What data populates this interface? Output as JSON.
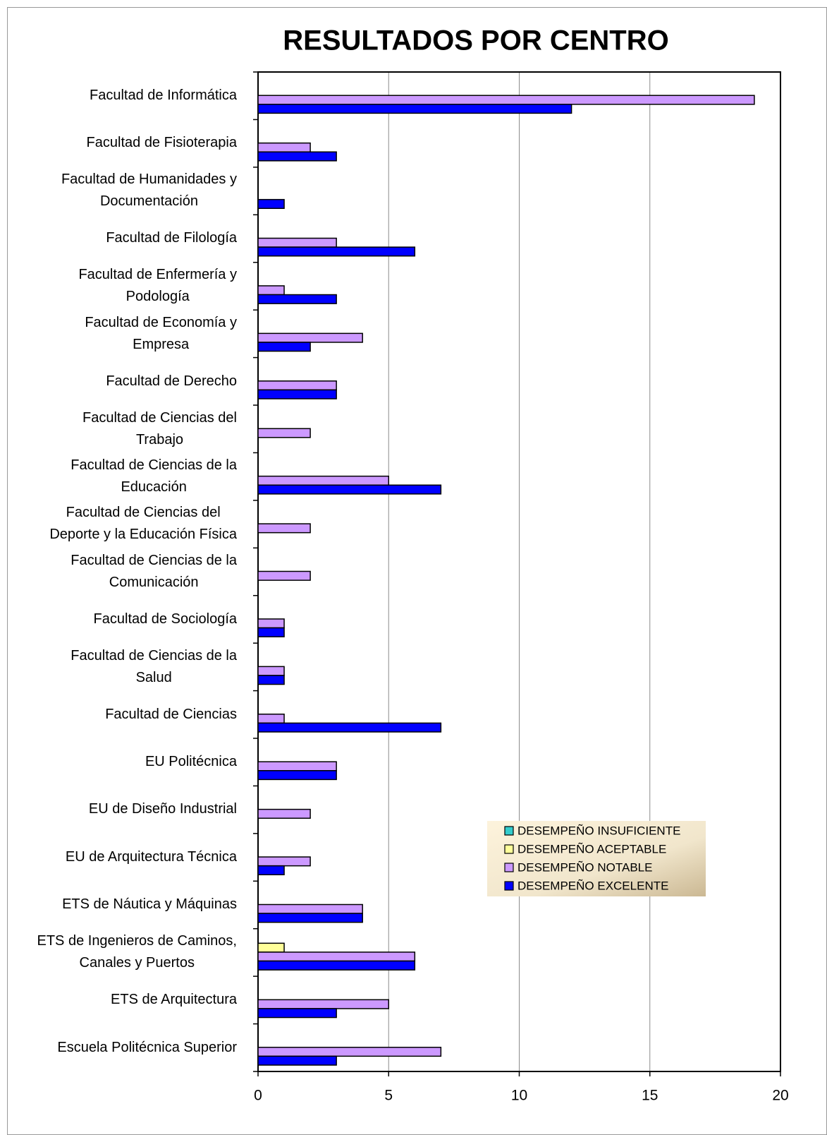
{
  "chart_data": {
    "type": "bar",
    "orientation": "horizontal",
    "title": "RESULTADOS POR CENTRO",
    "categories": [
      "Facultad de Informática",
      "Facultad de Fisioterapia",
      "Facultad de Humanidades y\nDocumentación",
      "Facultad de Filología",
      "Facultad de Enfermería y\nPodología",
      "Facultad de Economía y\nEmpresa",
      "Facultad de Derecho",
      "Facultad de Ciencias del\nTrabajo",
      "Facultad de Ciencias de la\nEducación",
      "Facultad de Ciencias del\nDeporte y la Educación Física",
      "Facultad de Ciencias de la\nComunicación",
      "Facultad de Sociología",
      "Facultad de Ciencias de la\nSalud",
      "Facultad de Ciencias",
      "EU Politécnica",
      "EU de Diseño Industrial",
      "EU de Arquitectura Técnica",
      "ETS de Náutica y Máquinas",
      "ETS de Ingenieros de Caminos,\nCanales y Puertos",
      "ETS de Arquitectura",
      "Escuela Politécnica Superior"
    ],
    "series": [
      {
        "name": "DESEMPEÑO INSUFICIENTE",
        "color": "#33cccc",
        "values": [
          0,
          0,
          0,
          0,
          0,
          0,
          0,
          0,
          0,
          0,
          0,
          0,
          0,
          0,
          0,
          0,
          0,
          0,
          0,
          0,
          0
        ]
      },
      {
        "name": "DESEMPEÑO ACEPTABLE",
        "color": "#ffff99",
        "values": [
          0,
          0,
          0,
          0,
          0,
          0,
          0,
          0,
          0,
          0,
          0,
          0,
          0,
          0,
          0,
          0,
          0,
          0,
          1,
          0,
          0
        ]
      },
      {
        "name": "DESEMPEÑO NOTABLE",
        "color": "#cc99ff",
        "values": [
          19,
          2,
          0,
          3,
          1,
          4,
          3,
          2,
          5,
          2,
          2,
          1,
          1,
          1,
          3,
          2,
          2,
          4,
          6,
          5,
          7
        ]
      },
      {
        "name": "DESEMPEÑO EXCELENTE",
        "color": "#0000ff",
        "values": [
          12,
          3,
          1,
          6,
          3,
          2,
          3,
          0,
          7,
          0,
          0,
          1,
          1,
          7,
          3,
          0,
          1,
          4,
          6,
          3,
          3
        ]
      }
    ],
    "xlim": [
      0,
      20
    ],
    "xticks": [
      0,
      5,
      10,
      15,
      20
    ],
    "grid": true,
    "legend": "lower right"
  }
}
